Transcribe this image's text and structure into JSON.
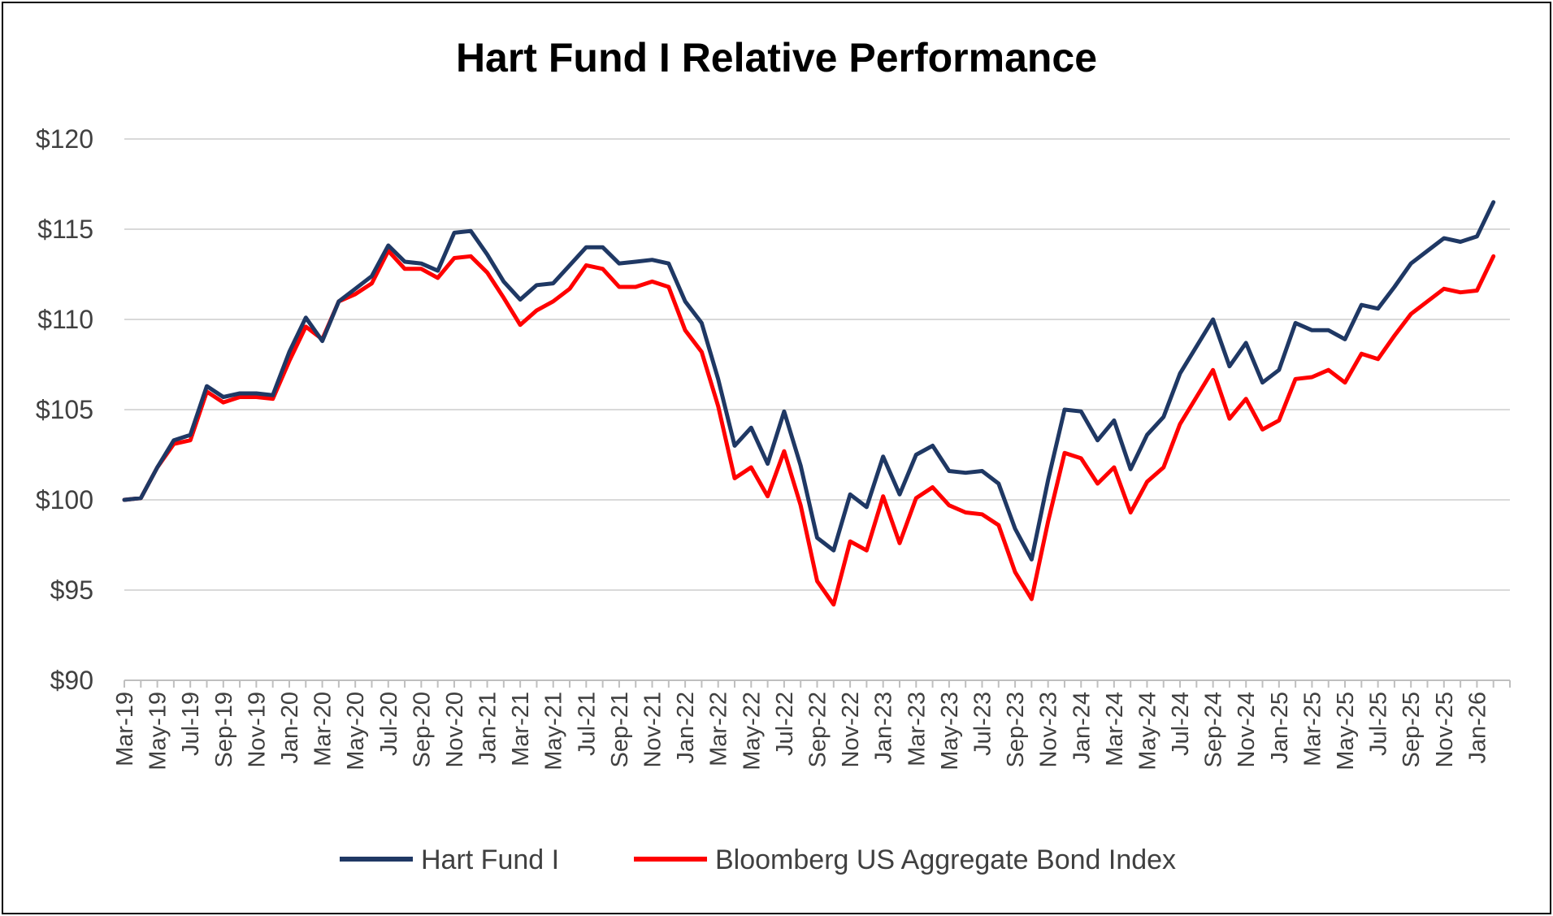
{
  "chart_data": {
    "type": "line",
    "title": "Hart Fund I Relative Performance",
    "xlabel": "",
    "ylabel": "",
    "ylim": [
      90,
      120
    ],
    "yticks": [
      90,
      95,
      100,
      105,
      110,
      115,
      120
    ],
    "ytick_labels": [
      "$90",
      "$95",
      "$100",
      "$105",
      "$110",
      "$115",
      "$120"
    ],
    "grid": true,
    "legend_position": "bottom",
    "x": [
      "Mar-19",
      "Apr-19",
      "May-19",
      "Jun-19",
      "Jul-19",
      "Aug-19",
      "Sep-19",
      "Oct-19",
      "Nov-19",
      "Dec-19",
      "Jan-20",
      "Feb-20",
      "Mar-20",
      "Apr-20",
      "May-20",
      "Jun-20",
      "Jul-20",
      "Aug-20",
      "Sep-20",
      "Oct-20",
      "Nov-20",
      "Dec-20",
      "Jan-21",
      "Feb-21",
      "Mar-21",
      "Apr-21",
      "May-21",
      "Jun-21",
      "Jul-21",
      "Aug-21",
      "Sep-21",
      "Oct-21",
      "Nov-21",
      "Dec-21",
      "Jan-22",
      "Feb-22",
      "Mar-22",
      "Apr-22",
      "May-22",
      "Jun-22",
      "Jul-22",
      "Aug-22",
      "Sep-22",
      "Oct-22",
      "Nov-22",
      "Dec-22",
      "Jan-23",
      "Feb-23",
      "Mar-23",
      "Apr-23",
      "May-23",
      "Jun-23",
      "Jul-23",
      "Aug-23",
      "Sep-23",
      "Oct-23",
      "Nov-23",
      "Dec-23",
      "Jan-24",
      "Feb-24",
      "Mar-24",
      "Apr-24",
      "May-24",
      "Jun-24",
      "Jul-24",
      "Aug-24",
      "Sep-24",
      "Oct-24",
      "Nov-24",
      "Dec-24",
      "Jan-25",
      "Feb-25",
      "Mar-25",
      "Apr-25",
      "May-25",
      "Jun-25",
      "Jul-25",
      "Aug-25",
      "Sep-25",
      "Oct-25",
      "Nov-25",
      "Dec-25",
      "Jan-26",
      "Feb-26"
    ],
    "x_tick_labels": [
      "Mar-19",
      "May-19",
      "Jul-19",
      "Sep-19",
      "Nov-19",
      "Jan-20",
      "Mar-20",
      "May-20",
      "Jul-20",
      "Sep-20",
      "Nov-20",
      "Jan-21",
      "Mar-21",
      "May-21",
      "Jul-21",
      "Sep-21",
      "Nov-21",
      "Jan-22",
      "Mar-22",
      "May-22",
      "Jul-22",
      "Sep-22",
      "Nov-22",
      "Jan-23",
      "Mar-23",
      "May-23",
      "Jul-23",
      "Sep-23",
      "Nov-23",
      "Jan-24",
      "Mar-24",
      "May-24",
      "Jul-24",
      "Sep-24",
      "Nov-24",
      "Jan-25",
      "Mar-25",
      "May-25",
      "Jul-25",
      "Sep-25",
      "Nov-25",
      "Jan-26"
    ],
    "series": [
      {
        "name": "Hart Fund I",
        "color": "#1f3864",
        "values": [
          100.0,
          100.1,
          101.8,
          103.3,
          103.6,
          106.3,
          105.7,
          105.9,
          105.9,
          105.8,
          108.2,
          110.1,
          108.8,
          111.0,
          111.7,
          112.4,
          114.1,
          113.2,
          113.1,
          112.7,
          114.8,
          114.9,
          113.6,
          112.1,
          111.1,
          111.9,
          112.0,
          113.0,
          114.0,
          114.0,
          113.1,
          113.2,
          113.3,
          113.1,
          111.0,
          109.8,
          106.7,
          103.0,
          104.0,
          102.0,
          104.9,
          101.9,
          97.9,
          97.2,
          100.3,
          99.6,
          102.4,
          100.3,
          102.5,
          103.0,
          101.6,
          101.5,
          101.6,
          100.9,
          98.4,
          96.7,
          101.1,
          105.0,
          104.9,
          103.3,
          104.4,
          101.7,
          103.6,
          104.6,
          107.0,
          108.5,
          110.0,
          107.4,
          108.7,
          106.5,
          107.2,
          109.8,
          109.4,
          109.4,
          108.9,
          110.8,
          110.6,
          111.8,
          113.1,
          113.8,
          114.5,
          114.3,
          114.6,
          116.5
        ]
      },
      {
        "name": "Bloomberg US Aggregate Bond Index",
        "color": "#ff0000",
        "values": [
          100.0,
          100.1,
          101.8,
          103.1,
          103.3,
          106.0,
          105.4,
          105.7,
          105.7,
          105.6,
          107.7,
          109.6,
          108.9,
          111.0,
          111.4,
          112.0,
          113.8,
          112.8,
          112.8,
          112.3,
          113.4,
          113.5,
          112.6,
          111.2,
          109.7,
          110.5,
          111.0,
          111.7,
          113.0,
          112.8,
          111.8,
          111.8,
          112.1,
          111.8,
          109.4,
          108.2,
          105.2,
          101.2,
          101.8,
          100.2,
          102.7,
          99.7,
          95.5,
          94.2,
          97.7,
          97.2,
          100.2,
          97.6,
          100.1,
          100.7,
          99.7,
          99.3,
          99.2,
          98.6,
          96.0,
          94.5,
          98.8,
          102.6,
          102.3,
          100.9,
          101.8,
          99.3,
          101.0,
          101.8,
          104.2,
          105.7,
          107.2,
          104.5,
          105.6,
          103.9,
          104.4,
          106.7,
          106.8,
          107.2,
          106.5,
          108.1,
          107.8,
          109.1,
          110.3,
          111.0,
          111.7,
          111.5,
          111.6,
          113.5
        ]
      }
    ]
  }
}
